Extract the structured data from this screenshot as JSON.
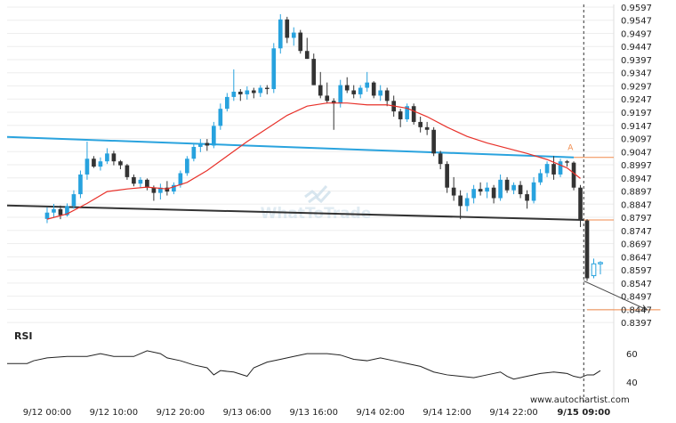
{
  "chart_data": {
    "type": "candlestick",
    "instrument_axis": {
      "y_ticks": [
        "0.9597",
        "0.9547",
        "0.9497",
        "0.9447",
        "0.9397",
        "0.9347",
        "0.9297",
        "0.9247",
        "0.9197",
        "0.9147",
        "0.9097",
        "0.9047",
        "0.8997",
        "0.8947",
        "0.8897",
        "0.8847",
        "0.8797",
        "0.8747",
        "0.8697",
        "0.8647",
        "0.8597",
        "0.8547",
        "0.8497",
        "0.8447",
        "0.8397"
      ],
      "ylim": [
        0.8377,
        0.9607
      ]
    },
    "x_ticks": [
      "9/12 00:00",
      "9/12 10:00",
      "9/12 20:00",
      "9/13 06:00",
      "9/13 16:00",
      "9/14 02:00",
      "9/14 12:00",
      "9/14 22:00",
      "9/15 09:00"
    ],
    "x_tick_positions": [
      0,
      10,
      20,
      30,
      40,
      50,
      60,
      70,
      80.5
    ],
    "xlim": [
      -6,
      85
    ],
    "candles": [
      [
        0.8791,
        0.8835,
        0.8775,
        0.8815
      ],
      [
        0.8815,
        0.8848,
        0.8795,
        0.8828
      ],
      [
        0.8828,
        0.8842,
        0.879,
        0.8805
      ],
      [
        0.8805,
        0.885,
        0.88,
        0.884
      ],
      [
        0.884,
        0.89,
        0.883,
        0.8885
      ],
      [
        0.8885,
        0.8975,
        0.887,
        0.896
      ],
      [
        0.896,
        0.9085,
        0.894,
        0.902
      ],
      [
        0.902,
        0.903,
        0.8985,
        0.899
      ],
      [
        0.899,
        0.9025,
        0.8975,
        0.901
      ],
      [
        0.901,
        0.906,
        0.9,
        0.904
      ],
      [
        0.904,
        0.905,
        0.8995,
        0.901
      ],
      [
        0.901,
        0.9015,
        0.898,
        0.8995
      ],
      [
        0.8995,
        0.9,
        0.894,
        0.895
      ],
      [
        0.895,
        0.896,
        0.8915,
        0.8925
      ],
      [
        0.8925,
        0.895,
        0.891,
        0.894
      ],
      [
        0.894,
        0.8945,
        0.89,
        0.891
      ],
      [
        0.891,
        0.8918,
        0.886,
        0.889
      ],
      [
        0.889,
        0.8925,
        0.8865,
        0.891
      ],
      [
        0.891,
        0.8935,
        0.888,
        0.8895
      ],
      [
        0.8895,
        0.893,
        0.8885,
        0.892
      ],
      [
        0.892,
        0.8975,
        0.891,
        0.8965
      ],
      [
        0.8965,
        0.903,
        0.8955,
        0.902
      ],
      [
        0.902,
        0.9075,
        0.901,
        0.9065
      ],
      [
        0.9065,
        0.9095,
        0.9045,
        0.908
      ],
      [
        0.908,
        0.9095,
        0.905,
        0.907
      ],
      [
        0.907,
        0.916,
        0.906,
        0.9145
      ],
      [
        0.9145,
        0.923,
        0.913,
        0.921
      ],
      [
        0.921,
        0.927,
        0.92,
        0.9255
      ],
      [
        0.9255,
        0.936,
        0.924,
        0.9275
      ],
      [
        0.9275,
        0.9285,
        0.924,
        0.9265
      ],
      [
        0.9265,
        0.9295,
        0.9245,
        0.928
      ],
      [
        0.928,
        0.929,
        0.925,
        0.927
      ],
      [
        0.927,
        0.93,
        0.9255,
        0.929
      ],
      [
        0.929,
        0.93,
        0.9265,
        0.9285
      ],
      [
        0.9285,
        0.946,
        0.927,
        0.944
      ],
      [
        0.944,
        0.957,
        0.942,
        0.955
      ],
      [
        0.955,
        0.956,
        0.946,
        0.948
      ],
      [
        0.948,
        0.952,
        0.945,
        0.95
      ],
      [
        0.95,
        0.951,
        0.942,
        0.943
      ],
      [
        0.943,
        0.948,
        0.94,
        0.94
      ],
      [
        0.94,
        0.942,
        0.93,
        0.93
      ],
      [
        0.93,
        0.935,
        0.925,
        0.926
      ],
      [
        0.926,
        0.931,
        0.923,
        0.924
      ],
      [
        0.924,
        0.925,
        0.913,
        0.923
      ],
      [
        0.923,
        0.932,
        0.9215,
        0.93
      ],
      [
        0.93,
        0.933,
        0.927,
        0.928
      ],
      [
        0.928,
        0.93,
        0.925,
        0.9265
      ],
      [
        0.9265,
        0.93,
        0.925,
        0.929
      ],
      [
        0.929,
        0.935,
        0.9275,
        0.931
      ],
      [
        0.931,
        0.9315,
        0.925,
        0.926
      ],
      [
        0.926,
        0.93,
        0.924,
        0.928
      ],
      [
        0.928,
        0.929,
        0.922,
        0.924
      ],
      [
        0.924,
        0.926,
        0.918,
        0.92
      ],
      [
        0.92,
        0.921,
        0.914,
        0.917
      ],
      [
        0.917,
        0.923,
        0.916,
        0.922
      ],
      [
        0.922,
        0.923,
        0.915,
        0.916
      ],
      [
        0.916,
        0.918,
        0.912,
        0.914
      ],
      [
        0.914,
        0.916,
        0.911,
        0.913
      ],
      [
        0.913,
        0.914,
        0.903,
        0.904
      ],
      [
        0.904,
        0.905,
        0.898,
        0.9
      ],
      [
        0.9,
        0.901,
        0.889,
        0.891
      ],
      [
        0.891,
        0.895,
        0.886,
        0.888
      ],
      [
        0.888,
        0.89,
        0.879,
        0.884
      ],
      [
        0.884,
        0.889,
        0.882,
        0.887
      ],
      [
        0.887,
        0.892,
        0.885,
        0.8905
      ],
      [
        0.8905,
        0.893,
        0.888,
        0.8895
      ],
      [
        0.8895,
        0.893,
        0.887,
        0.891
      ],
      [
        0.891,
        0.892,
        0.885,
        0.887
      ],
      [
        0.887,
        0.896,
        0.886,
        0.894
      ],
      [
        0.894,
        0.895,
        0.889,
        0.89
      ],
      [
        0.89,
        0.893,
        0.8885,
        0.892
      ],
      [
        0.892,
        0.8935,
        0.887,
        0.8885
      ],
      [
        0.8885,
        0.89,
        0.883,
        0.886
      ],
      [
        0.886,
        0.895,
        0.885,
        0.893
      ],
      [
        0.893,
        0.898,
        0.892,
        0.8965
      ],
      [
        0.8965,
        0.901,
        0.895,
        0.9
      ],
      [
        0.9,
        0.903,
        0.894,
        0.896
      ],
      [
        0.896,
        0.902,
        0.895,
        0.901
      ],
      [
        0.901,
        0.9015,
        0.899,
        0.9005
      ],
      [
        0.9005,
        0.901,
        0.89,
        0.891
      ],
      [
        0.891,
        0.892,
        0.876,
        0.8785
      ],
      [
        0.8785,
        0.879,
        0.8555,
        0.8565
      ],
      [
        0.8575,
        0.864,
        0.8565,
        0.862
      ],
      [
        0.862,
        0.863,
        0.858,
        0.8625
      ]
    ],
    "moving_average": {
      "color": "#e8312a",
      "values": [
        [
          0,
          0.879
        ],
        [
          3,
          0.881
        ],
        [
          6,
          0.885
        ],
        [
          9,
          0.8895
        ],
        [
          12,
          0.8905
        ],
        [
          15,
          0.8912
        ],
        [
          18,
          0.8905
        ],
        [
          21,
          0.893
        ],
        [
          24,
          0.8975
        ],
        [
          27,
          0.903
        ],
        [
          30,
          0.9085
        ],
        [
          33,
          0.9135
        ],
        [
          36,
          0.9185
        ],
        [
          39,
          0.922
        ],
        [
          42,
          0.9232
        ],
        [
          45,
          0.9232
        ],
        [
          48,
          0.9225
        ],
        [
          51,
          0.9225
        ],
        [
          54,
          0.9212
        ],
        [
          57,
          0.918
        ],
        [
          60,
          0.914
        ],
        [
          63,
          0.9105
        ],
        [
          66,
          0.908
        ],
        [
          69,
          0.906
        ],
        [
          72,
          0.904
        ],
        [
          75,
          0.9017
        ],
        [
          78,
          0.8985
        ],
        [
          80,
          0.8945
        ]
      ]
    },
    "trendlines": [
      {
        "name": "resistance",
        "color": "#2aa3de",
        "points": [
          [
            -6,
            0.9103
          ],
          [
            79,
            0.9025
          ]
        ]
      },
      {
        "name": "support",
        "color": "#333333",
        "points": [
          [
            -6,
            0.8842
          ],
          [
            80.5,
            0.8787
          ]
        ]
      },
      {
        "name": "forecast",
        "color": "#444444",
        "points": [
          [
            80.5,
            0.8555
          ],
          [
            90,
            0.8445
          ]
        ]
      }
    ],
    "levels": [
      {
        "name": "resistance-level",
        "color": "#f08a4b",
        "value": 0.9025,
        "from_x": 79
      },
      {
        "name": "breakout-level",
        "color": "#f08a4b",
        "value": 0.8787,
        "from_x": 80.5
      },
      {
        "name": "target-level",
        "color": "#f08a4b",
        "value": 0.8445,
        "from_x": 81,
        "to_x": 92
      }
    ],
    "pattern_label": "A",
    "pattern_label_at": [
      78.5,
      0.904
    ],
    "breakout_time_x": 80.5,
    "rsi": {
      "label": "RSI",
      "y_ticks": [
        "60",
        "40"
      ],
      "y_tick_values": [
        60,
        40
      ],
      "ylim": [
        33,
        67
      ],
      "values": [
        [
          -6,
          53
        ],
        [
          -3,
          53
        ],
        [
          -2,
          55
        ],
        [
          0,
          57
        ],
        [
          3,
          58
        ],
        [
          6,
          58
        ],
        [
          8,
          60
        ],
        [
          10,
          58
        ],
        [
          13,
          58
        ],
        [
          15,
          62
        ],
        [
          17,
          60
        ],
        [
          18,
          57
        ],
        [
          20,
          55
        ],
        [
          22,
          52
        ],
        [
          24,
          50
        ],
        [
          25,
          45
        ],
        [
          26,
          48
        ],
        [
          28,
          47
        ],
        [
          30,
          44
        ],
        [
          31,
          50
        ],
        [
          33,
          54
        ],
        [
          35,
          56
        ],
        [
          37,
          58
        ],
        [
          39,
          60
        ],
        [
          42,
          60
        ],
        [
          44,
          59
        ],
        [
          46,
          56
        ],
        [
          48,
          55
        ],
        [
          50,
          57
        ],
        [
          52,
          55
        ],
        [
          54,
          53
        ],
        [
          56,
          51
        ],
        [
          58,
          47
        ],
        [
          60,
          45
        ],
        [
          62,
          44
        ],
        [
          64,
          43
        ],
        [
          66,
          45
        ],
        [
          68,
          47
        ],
        [
          69,
          44
        ],
        [
          70,
          42
        ],
        [
          72,
          44
        ],
        [
          74,
          46
        ],
        [
          76,
          47
        ],
        [
          78,
          46
        ],
        [
          79,
          44
        ],
        [
          80,
          43
        ],
        [
          81,
          45
        ],
        [
          82,
          45
        ],
        [
          83,
          48
        ]
      ]
    },
    "watermark": "WhatToTrade",
    "credit": "www.autochartist.com"
  }
}
